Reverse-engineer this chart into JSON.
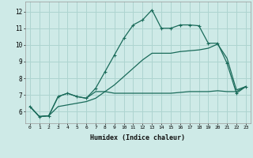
{
  "xlabel": "Humidex (Indice chaleur)",
  "bg_color": "#ceeae7",
  "grid_color": "#aed4d0",
  "line_color": "#1a6b5a",
  "x_hours": [
    0,
    1,
    2,
    3,
    4,
    5,
    6,
    7,
    8,
    9,
    10,
    11,
    12,
    13,
    14,
    15,
    16,
    17,
    18,
    19,
    20,
    21,
    22,
    23
  ],
  "series1": [
    6.3,
    5.7,
    5.75,
    6.9,
    7.1,
    6.9,
    6.8,
    7.4,
    8.4,
    9.4,
    10.4,
    11.2,
    11.5,
    12.1,
    11.0,
    11.0,
    11.2,
    11.2,
    11.15,
    10.1,
    10.1,
    8.9,
    7.1,
    7.5
  ],
  "series2": [
    6.3,
    5.7,
    5.75,
    6.9,
    7.1,
    6.9,
    6.8,
    7.2,
    7.2,
    7.1,
    7.1,
    7.1,
    7.1,
    7.1,
    7.1,
    7.1,
    7.15,
    7.2,
    7.2,
    7.2,
    7.25,
    7.2,
    7.2,
    7.5
  ],
  "series3": [
    6.3,
    5.7,
    5.75,
    6.3,
    6.4,
    6.5,
    6.6,
    6.8,
    7.2,
    7.6,
    8.1,
    8.6,
    9.1,
    9.5,
    9.5,
    9.5,
    9.6,
    9.65,
    9.7,
    9.8,
    10.05,
    9.2,
    7.3,
    7.5
  ],
  "ylim": [
    5.3,
    12.6
  ],
  "yticks": [
    6,
    7,
    8,
    9,
    10,
    11,
    12
  ],
  "xlim": [
    -0.5,
    23.5
  ]
}
